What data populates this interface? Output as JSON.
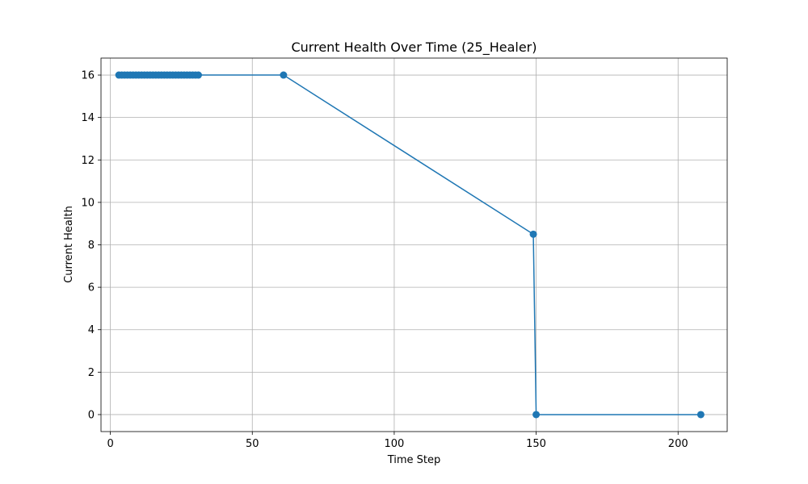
{
  "chart_data": {
    "type": "line",
    "title": "Current Health Over Time (25_Healer)",
    "xlabel": "Time Step",
    "ylabel": "Current Health",
    "xlim": [
      -3.3,
      217.3
    ],
    "ylim": [
      -0.8,
      16.8
    ],
    "xticks": [
      0,
      50,
      100,
      150,
      200
    ],
    "yticks": [
      0,
      2,
      4,
      6,
      8,
      10,
      12,
      14,
      16
    ],
    "grid": true,
    "legend": "none",
    "series": [
      {
        "color": "#1f77b4",
        "marker": "circle",
        "points": [
          [
            3,
            16
          ],
          [
            4,
            16
          ],
          [
            5,
            16
          ],
          [
            6,
            16
          ],
          [
            7,
            16
          ],
          [
            8,
            16
          ],
          [
            9,
            16
          ],
          [
            10,
            16
          ],
          [
            11,
            16
          ],
          [
            12,
            16
          ],
          [
            13,
            16
          ],
          [
            14,
            16
          ],
          [
            15,
            16
          ],
          [
            16,
            16
          ],
          [
            17,
            16
          ],
          [
            18,
            16
          ],
          [
            19,
            16
          ],
          [
            20,
            16
          ],
          [
            21,
            16
          ],
          [
            22,
            16
          ],
          [
            23,
            16
          ],
          [
            24,
            16
          ],
          [
            25,
            16
          ],
          [
            26,
            16
          ],
          [
            27,
            16
          ],
          [
            28,
            16
          ],
          [
            29,
            16
          ],
          [
            30,
            16
          ],
          [
            31,
            16
          ],
          [
            61,
            16
          ],
          [
            149,
            8.5
          ],
          [
            150,
            0
          ],
          [
            208,
            0
          ]
        ]
      }
    ]
  }
}
